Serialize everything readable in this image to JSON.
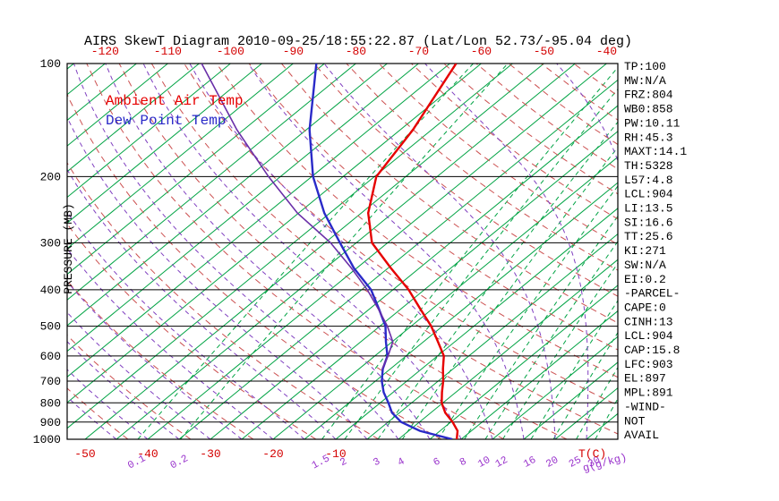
{
  "chart_data": {
    "type": "line",
    "subtype": "skewt-log-p",
    "title": "AIRS SkewT Diagram 2010-09-25/18:55:22.87 (Lat/Lon 52.73/-95.04 deg)",
    "y_scale": "log-pressure",
    "skew": "45deg-isotherms",
    "pressure_axis": {
      "label": "PRESSURE (MB)",
      "ticks": [
        100,
        200,
        300,
        400,
        500,
        600,
        700,
        800,
        900,
        1000
      ],
      "range": [
        1000,
        100
      ]
    },
    "temp_axis": {
      "unit_label": "T(C)",
      "color": "#d40000",
      "top_ticks": [
        -120,
        -110,
        -100,
        -90,
        -80,
        -70,
        -60,
        -50,
        -40
      ],
      "bottom_ticks": [
        -50,
        -40,
        -30,
        -20,
        -10
      ]
    },
    "mixing_ratio_axis": {
      "unit_label": "g(g/kg)",
      "color": "#9933cc",
      "ticks": [
        0.1,
        0.2,
        1.5,
        2,
        3,
        4,
        6,
        8,
        10,
        12,
        16,
        20,
        25,
        30
      ]
    },
    "grid": {
      "isotherm_step_c": 5,
      "isotherm_color": "#00a344",
      "mixing_line_color": "#00a344",
      "dry_adiabat_step_k": 10,
      "dry_adiabat_color": "#cc5050",
      "moist_adiabat_step_c": 5,
      "moist_adiabat_color": "#8040c0",
      "pressure_line_color": "#000000"
    },
    "series": [
      {
        "id": "ambient-air-temp",
        "label": "Ambient Air Temp",
        "color": "#e60000",
        "points": [
          [
            1000,
            9.3
          ],
          [
            950,
            7.8
          ],
          [
            900,
            5.3
          ],
          [
            850,
            2.3
          ],
          [
            800,
            -0.2
          ],
          [
            750,
            -2.2
          ],
          [
            700,
            -4.2
          ],
          [
            650,
            -6.6
          ],
          [
            600,
            -9.0
          ],
          [
            550,
            -12.7
          ],
          [
            500,
            -16.8
          ],
          [
            450,
            -21.9
          ],
          [
            400,
            -27.5
          ],
          [
            350,
            -34.6
          ],
          [
            300,
            -42.5
          ],
          [
            250,
            -48.9
          ],
          [
            200,
            -54.7
          ],
          [
            150,
            -58.0
          ],
          [
            100,
            -64.0
          ]
        ]
      },
      {
        "id": "dew-point-temp",
        "label": "Dew Point Temp",
        "color": "#2a2ac8",
        "points": [
          [
            1000,
            8.6
          ],
          [
            950,
            1.8
          ],
          [
            900,
            -2.9
          ],
          [
            850,
            -6.2
          ],
          [
            800,
            -8.7
          ],
          [
            750,
            -11.5
          ],
          [
            700,
            -14.0
          ],
          [
            650,
            -16.2
          ],
          [
            600,
            -18.0
          ],
          [
            550,
            -21.0
          ],
          [
            500,
            -24.1
          ],
          [
            450,
            -28.5
          ],
          [
            400,
            -33.5
          ],
          [
            350,
            -40.5
          ],
          [
            300,
            -47.6
          ],
          [
            250,
            -55.9
          ],
          [
            200,
            -64.8
          ],
          [
            150,
            -74.5
          ],
          [
            100,
            -86.3
          ]
        ]
      },
      {
        "id": "parcel-curve",
        "label": "",
        "color": "#6a2fa8",
        "points": [
          [
            650,
            -16.3
          ],
          [
            600,
            -17.9
          ],
          [
            550,
            -19.9
          ],
          [
            500,
            -23.8
          ],
          [
            450,
            -28.6
          ],
          [
            400,
            -34.1
          ],
          [
            350,
            -40.9
          ],
          [
            300,
            -49.1
          ],
          [
            250,
            -60.2
          ],
          [
            200,
            -71.9
          ],
          [
            150,
            -86.1
          ],
          [
            100,
            -104.6
          ]
        ]
      }
    ],
    "stats_panel": [
      "TP:100",
      "MW:N/A",
      "FRZ:804",
      "WB0:858",
      "PW:10.11",
      "RH:45.3",
      "MAXT:14.1",
      "TH:5328",
      "L57:4.8",
      "LCL:904",
      "LI:13.5",
      "SI:16.6",
      "TT:25.6",
      "KI:271",
      "SW:N/A",
      "EI:0.2",
      "-PARCEL-",
      "CAPE:0",
      "CINH:13",
      "LCL:904",
      "CAP:15.8",
      "LFC:903",
      "EL:897",
      "MPL:891",
      "-WIND-",
      "NOT",
      "AVAIL"
    ]
  }
}
